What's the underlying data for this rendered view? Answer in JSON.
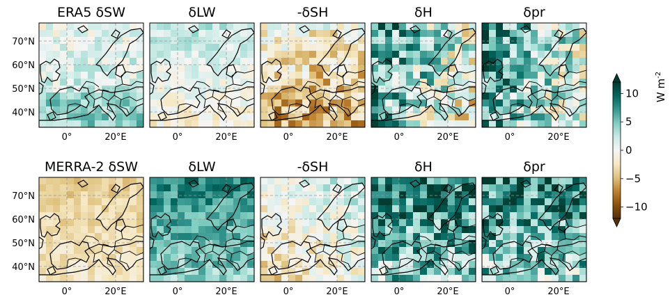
{
  "figure": {
    "rows": [
      {
        "name": "era5",
        "titles": [
          "ERA5 δSW",
          "δLW",
          "-δSH",
          "δH",
          "δpr"
        ],
        "fields": [
          {
            "base": 1.5,
            "n_amp": 2.5,
            "gradient": "south-north-pos"
          },
          {
            "base": 0.5,
            "n_amp": 2.0,
            "gradient": "north-pos"
          },
          {
            "base": -3.5,
            "n_amp": 4.0,
            "gradient": "south-neg"
          },
          {
            "base": 3.0,
            "n_amp": 6.0,
            "gradient": "east-neg"
          },
          {
            "base": 3.5,
            "n_amp": 5.5,
            "gradient": "east-neg"
          }
        ]
      },
      {
        "name": "merra2",
        "titles": [
          "MERRA-2 δSW",
          "δLW",
          "-δSH",
          "δH",
          "δpr"
        ],
        "fields": [
          {
            "base": -3.0,
            "n_amp": 1.5,
            "gradient": "uniform-neg"
          },
          {
            "base": 6.0,
            "n_amp": 2.5,
            "gradient": "north-pos"
          },
          {
            "base": -0.5,
            "n_amp": 3.0,
            "gradient": "mixed"
          },
          {
            "base": 6.5,
            "n_amp": 5.5,
            "gradient": "south-neg"
          },
          {
            "base": 6.0,
            "n_amp": 5.5,
            "gradient": "south-neg"
          }
        ]
      }
    ],
    "lat_ticks": [
      "70°N",
      "60°N",
      "50°N",
      "40°N"
    ],
    "lon_ticks": [
      "0°",
      "20°E"
    ],
    "colorbar": {
      "label": "W m",
      "label_sup": "-2",
      "ticks": [
        "10",
        "5",
        "0",
        "−5",
        "−10"
      ],
      "vmin": -12,
      "vmax": 12,
      "colormap": "BrBG",
      "colors": [
        "#543005",
        "#8c510a",
        "#bf812d",
        "#dfc27d",
        "#f6e8c3",
        "#f5f5f5",
        "#c7eae5",
        "#80cdc1",
        "#35978f",
        "#01665e",
        "#003c30"
      ]
    }
  }
}
